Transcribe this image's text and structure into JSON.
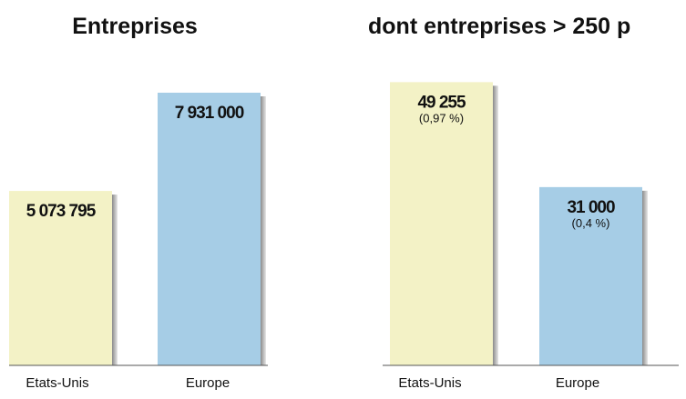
{
  "chart_data": [
    {
      "type": "bar",
      "title": "Entreprises",
      "categories": [
        "Etats-Unis",
        "Europe"
      ],
      "values": [
        5073795,
        7931000
      ],
      "value_labels": [
        "5 073 795",
        "7 931 000"
      ],
      "percent_labels": [
        "",
        ""
      ],
      "colors": [
        "#f3f2c6",
        "#a6cde6"
      ],
      "xlabel": "",
      "ylabel": "",
      "ylim": [
        0,
        9200000
      ],
      "grid": false
    },
    {
      "type": "bar",
      "title": "dont entreprises > 250 p",
      "categories": [
        "Etats-Unis",
        "Europe"
      ],
      "values": [
        49255,
        31000
      ],
      "value_labels": [
        "49 255",
        "31 000"
      ],
      "percent_labels": [
        "(0,97 %)",
        "(0,4 %)"
      ],
      "colors": [
        "#f3f2c6",
        "#a6cde6"
      ],
      "xlabel": "",
      "ylabel": "",
      "ylim": [
        0,
        55000
      ],
      "grid": false
    }
  ]
}
